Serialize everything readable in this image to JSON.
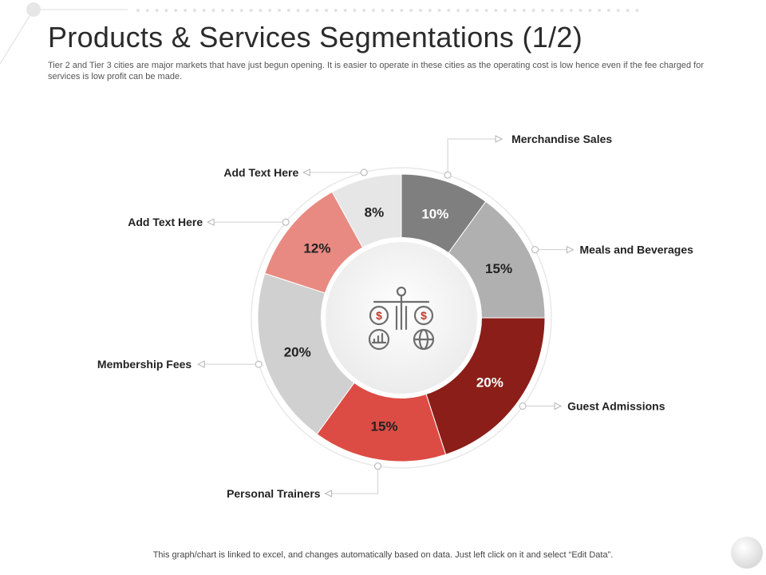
{
  "header": {
    "title": "Products & Services Segmentations (1/2)",
    "subtitle": "Tier 2 and Tier 3 cities are major markets that have just begun opening. It is easier to operate in these cities as the operating cost is low hence even if the fee charged for services is low profit can be made."
  },
  "footer": {
    "note": "This graph/chart is linked to excel, and changes automatically based on data. Just left click on it and select “Edit Data”."
  },
  "center_icon": "investment-balance-scale-icon",
  "chart_data": {
    "type": "pie",
    "donut": true,
    "title": "",
    "categories": [
      "Merchandise Sales",
      "Meals and Beverages",
      "Guest Admissions",
      "Personal Trainers",
      "Membership Fees",
      "Add Text Here",
      "Add Text Here"
    ],
    "values": [
      10,
      15,
      20,
      15,
      20,
      12,
      8
    ],
    "value_labels": [
      "10%",
      "15%",
      "20%",
      "15%",
      "20%",
      "12%",
      "8%"
    ],
    "colors": [
      "#7f7f7f",
      "#b0b0b0",
      "#8b1e18",
      "#dc4c44",
      "#d0d0d0",
      "#e88a82",
      "#e6e6e6"
    ],
    "label_colors": [
      "#ffffff",
      "#222222",
      "#ffffff",
      "#222222",
      "#222222",
      "#222222",
      "#222222"
    ],
    "start": "top, clockwise",
    "legend": "callout labels around the ring"
  }
}
